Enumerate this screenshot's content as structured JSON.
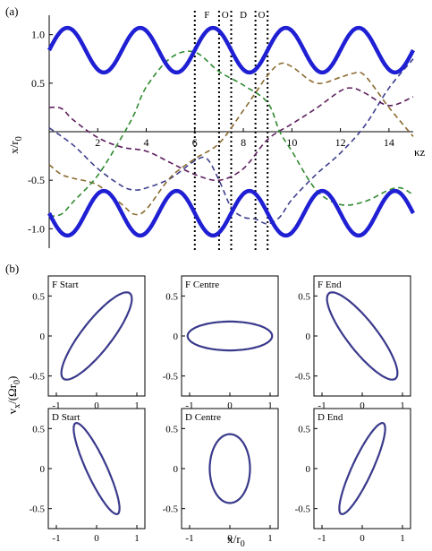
{
  "chart_data": [
    {
      "type": "line",
      "panel_label": "(a)",
      "xlabel": "κz",
      "ylabel": "x/r",
      "ylabel_sub": "0",
      "xlim": [
        0,
        15
      ],
      "ylim": [
        -1.2,
        1.2
      ],
      "xticks": [
        2,
        4,
        6,
        8,
        10,
        12,
        14
      ],
      "yticks": [
        -1.0,
        -0.5,
        0.5,
        1.0
      ],
      "ytick_labels": [
        "-1.0",
        "-0.5",
        "0.5",
        "1.0"
      ],
      "region_lines": [
        6,
        7,
        7.5,
        8.5,
        9
      ],
      "region_labels": [
        {
          "text": "F",
          "x": 6.5
        },
        {
          "text": "O",
          "x": 7.25
        },
        {
          "text": "D",
          "x": 8.0
        },
        {
          "text": "O",
          "x": 8.75
        }
      ],
      "envelope": {
        "color": "#1f1fd4",
        "mean": 0.84,
        "amplitude": 0.23,
        "period": 3,
        "phase_offset": 0.75
      },
      "series": [
        {
          "color": "#3f3f8f",
          "x": [
            0,
            1,
            2,
            3,
            3.5,
            4,
            5,
            6,
            6.5,
            7,
            7.5,
            8,
            8.5,
            9,
            9.5,
            10,
            11,
            12,
            13,
            14,
            15
          ],
          "y": [
            0.04,
            -0.14,
            -0.38,
            -0.56,
            -0.6,
            -0.58,
            -0.48,
            -0.3,
            -0.28,
            -0.5,
            -0.78,
            -0.88,
            -0.9,
            -0.95,
            -0.88,
            -0.7,
            -0.44,
            -0.22,
            0.06,
            0.45,
            0.75
          ]
        },
        {
          "color": "#8a6a2f",
          "x": [
            0,
            0.5,
            1,
            2,
            3,
            3.5,
            4,
            5,
            6,
            7,
            8,
            8.5,
            9,
            9.5,
            10,
            11,
            12,
            12.5,
            13,
            14,
            15
          ],
          "y": [
            -0.34,
            -0.44,
            -0.48,
            -0.55,
            -0.75,
            -0.85,
            -0.8,
            -0.47,
            -0.28,
            -0.12,
            0.22,
            0.4,
            0.58,
            0.7,
            0.67,
            0.5,
            0.56,
            0.6,
            0.58,
            0.25,
            -0.05
          ]
        },
        {
          "color": "#5e1f5e",
          "x": [
            0,
            0.5,
            1,
            2,
            3,
            4,
            5,
            6,
            7,
            8,
            9,
            10,
            11,
            12,
            12.5,
            13,
            14,
            15
          ],
          "y": [
            0.25,
            0.24,
            0.12,
            -0.06,
            -0.16,
            -0.2,
            -0.32,
            -0.44,
            -0.5,
            -0.38,
            -0.08,
            0.08,
            0.24,
            0.42,
            0.45,
            0.4,
            0.27,
            0.36
          ]
        },
        {
          "color": "#2f8a2f",
          "x": [
            0,
            0.5,
            1,
            2,
            3,
            3.5,
            4,
            5,
            6,
            7,
            8,
            9,
            9.5,
            10,
            11,
            12,
            13,
            14,
            14.5,
            15
          ],
          "y": [
            -0.87,
            -0.85,
            -0.72,
            -0.45,
            -0.05,
            0.18,
            0.46,
            0.76,
            0.82,
            0.62,
            0.48,
            0.3,
            0.0,
            -0.2,
            -0.6,
            -0.75,
            -0.72,
            -0.6,
            -0.58,
            -0.65
          ]
        }
      ]
    },
    {
      "type": "scatter",
      "panel_label": "(b)",
      "xlabel": "x/r",
      "xlabel_sub": "0",
      "ylabel": "v",
      "ylabel_sub1": "x",
      "ylabel_mid": "/(Ωr",
      "ylabel_sub2": "0",
      "ylabel_end": ")",
      "xlim": [
        -1.2,
        1.2
      ],
      "ylim": [
        -0.75,
        0.75
      ],
      "xticks": [
        -1,
        0,
        1
      ],
      "yticks": [
        0.5,
        0,
        -0.5
      ],
      "ytick_labels": [
        "0.5",
        "0",
        "-0.5"
      ],
      "ellipse_color": "#3a3a8c",
      "panels": [
        {
          "title": "F Start",
          "rx": 1.0,
          "ry": 0.25,
          "angle": 30
        },
        {
          "title": "F Centre",
          "rx": 1.05,
          "ry": 0.18,
          "angle": 0
        },
        {
          "title": "F End",
          "rx": 1.0,
          "ry": 0.25,
          "angle": -30
        },
        {
          "title": "D Start",
          "rx": 0.78,
          "ry": 0.2,
          "angle": -45
        },
        {
          "title": "D Centre",
          "rx": 0.5,
          "ry": 0.43,
          "angle": 0
        },
        {
          "title": "D End",
          "rx": 0.78,
          "ry": 0.2,
          "angle": 45
        }
      ]
    }
  ]
}
